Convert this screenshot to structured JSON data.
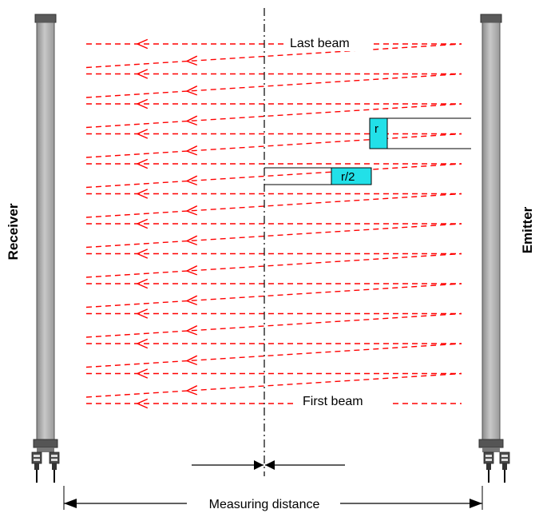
{
  "labels": {
    "receiver": "Receiver",
    "emitter": "Emitter",
    "last_beam": "Last beam",
    "first_beam": "First beam",
    "measuring_distance": "Measuring distance",
    "r": "r",
    "r_half": "r/2"
  },
  "colors": {
    "beam": "#ff0000",
    "housing": "#b3b3b3",
    "housing_dark": "#5a5a5a",
    "annotation_box": "#22e0e8"
  },
  "diagram": {
    "straight_beam_count": 13,
    "diagonal_beam_count": 12
  }
}
